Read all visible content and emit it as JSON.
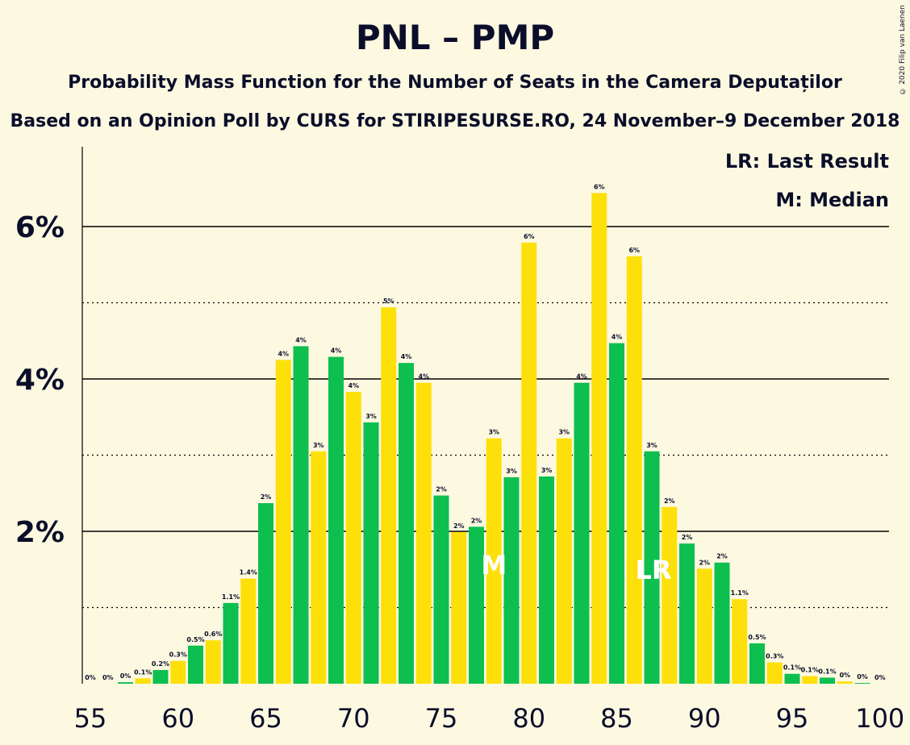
{
  "header": {
    "title": "PNL – PMP",
    "subtitle": "Probability Mass Function for the Number of Seats in the Camera Deputaților",
    "subtitle2": "Based on an Opinion Poll by CURS for STIRIPESURSE.RO, 24 November–9 December 2018",
    "copyright": "© 2020 Filip van Laenen"
  },
  "legend": {
    "last_result": "LR: Last Result",
    "median": "M: Median"
  },
  "colors": {
    "background": "#fdf9e1",
    "green": "#0dbf4f",
    "yellow": "#fde00a",
    "text": "#0a0e2a"
  },
  "chart_data": {
    "type": "bar",
    "x": [
      55,
      56,
      57,
      58,
      59,
      60,
      61,
      62,
      63,
      64,
      65,
      66,
      67,
      68,
      69,
      70,
      71,
      72,
      73,
      74,
      75,
      76,
      77,
      78,
      79,
      80,
      81,
      82,
      83,
      84,
      85,
      86,
      87,
      88,
      89,
      90,
      91,
      92,
      93,
      94,
      95,
      96,
      97,
      98,
      99,
      100
    ],
    "values": [
      0,
      0,
      0.02,
      0.07,
      0.18,
      0.3,
      0.5,
      0.57,
      1.06,
      1.38,
      2.37,
      4.25,
      4.43,
      3.05,
      4.29,
      3.83,
      3.43,
      4.94,
      4.21,
      3.95,
      2.47,
      1.99,
      2.06,
      3.22,
      2.71,
      5.79,
      2.72,
      3.22,
      3.95,
      6.44,
      4.47,
      5.61,
      3.05,
      2.32,
      1.84,
      1.51,
      1.59,
      1.11,
      0.53,
      0.28,
      0.13,
      0.1,
      0.08,
      0.03,
      0.01,
      0
    ],
    "labels": [
      "0%",
      "0%",
      "0%",
      "0.1%",
      "0.2%",
      "0.3%",
      "0.5%",
      "0.6%",
      "1.1%",
      "1.4%",
      "2%",
      "4%",
      "4%",
      "3%",
      "4%",
      "4%",
      "3%",
      "5%",
      "4%",
      "4%",
      "2%",
      "2%",
      "2%",
      "3%",
      "3%",
      "6%",
      "3%",
      "3%",
      "4%",
      "6%",
      "4%",
      "6%",
      "3%",
      "2%",
      "2%",
      "2%",
      "2%",
      "1.1%",
      "0.5%",
      "0.3%",
      "0.1%",
      "0.1%",
      "0.1%",
      "0%",
      "0%",
      "0%"
    ],
    "x_ticks": [
      "55",
      "60",
      "65",
      "70",
      "75",
      "80",
      "85",
      "90",
      "95",
      "100"
    ],
    "y_ticks": [
      "2%",
      "4%",
      "6%"
    ],
    "ylim": [
      0,
      7
    ],
    "median_seat": 78,
    "median_label": "M",
    "last_result_seat": 87,
    "last_result_label": "LR"
  }
}
